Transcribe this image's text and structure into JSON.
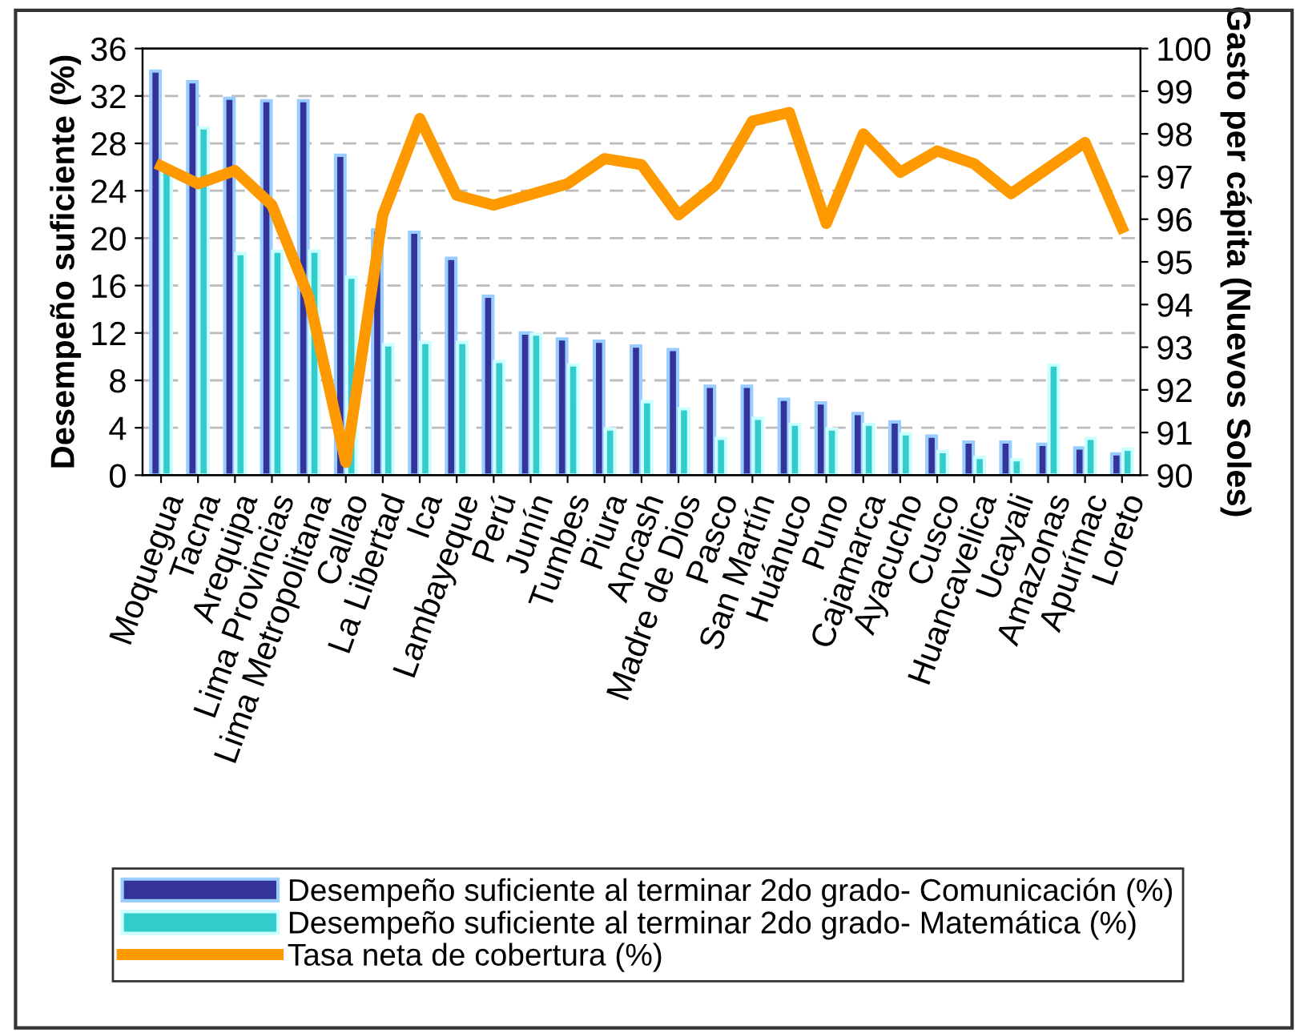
{
  "chart_data": {
    "type": "bar",
    "ylabel": "Desempeño suficiente (%)",
    "y2label": "Gasto per cápita (Nuevos Soles)",
    "categories": [
      "Moquegua",
      "Tacna",
      "Arequipa",
      "Lima Provincias",
      "Lima Metropolitana",
      "Callao",
      "La Libertad",
      "Ica",
      "Lambayeque",
      "Perú",
      "Junín",
      "Tumbes",
      "Piura",
      "Ancash",
      "Madre de Dios",
      "Pasco",
      "San Martín",
      "Huánuco",
      "Puno",
      "Cajamarca",
      "Ayacucho",
      "Cusco",
      "Huancavelica",
      "Ucayali",
      "Amazonas",
      "Apurímac",
      "Loreto"
    ],
    "series": [
      {
        "name": "Desempeño suficiente al terminar 2do grado- Comunicación (%)",
        "color": "#333399",
        "values": [
          34.1,
          33.2,
          31.8,
          31.6,
          31.6,
          27.0,
          20.7,
          20.5,
          18.3,
          15.1,
          12.0,
          11.5,
          11.3,
          10.9,
          10.6,
          7.5,
          7.5,
          6.4,
          6.1,
          5.2,
          4.5,
          3.3,
          2.8,
          2.8,
          2.6,
          2.3,
          1.8
        ]
      },
      {
        "name": "Desempeño suficiente al terminar 2do grado- Matemática (%)",
        "color": "#33cccc",
        "values": [
          25.8,
          29.3,
          18.7,
          18.9,
          18.9,
          16.7,
          11.0,
          11.2,
          11.2,
          9.6,
          11.9,
          9.3,
          3.9,
          6.2,
          5.6,
          3.1,
          4.8,
          4.3,
          3.9,
          4.3,
          3.5,
          2.0,
          1.5,
          1.3,
          9.3,
          3.1,
          2.2
        ]
      },
      {
        "name": "Tasa neta de cobertura (%)",
        "type": "line",
        "axis": "y2",
        "color": "#ff9900",
        "values": [
          97.25,
          96.83,
          97.14,
          96.33,
          94.17,
          90.3,
          96.1,
          98.36,
          96.56,
          96.33,
          96.58,
          96.83,
          97.42,
          97.28,
          96.1,
          96.8,
          98.3,
          98.5,
          95.9,
          98.0,
          97.1,
          97.6,
          97.3,
          96.6,
          97.2,
          97.8,
          95.8
        ]
      }
    ],
    "ylim": [
      0,
      36
    ],
    "yticks": [
      0,
      4,
      8,
      12,
      16,
      20,
      24,
      28,
      32,
      36
    ],
    "y2lim": [
      90,
      100
    ],
    "y2ticks": [
      90,
      91,
      92,
      93,
      94,
      95,
      96,
      97,
      98,
      99,
      100
    ],
    "grid": "y",
    "legend": "bottom"
  }
}
